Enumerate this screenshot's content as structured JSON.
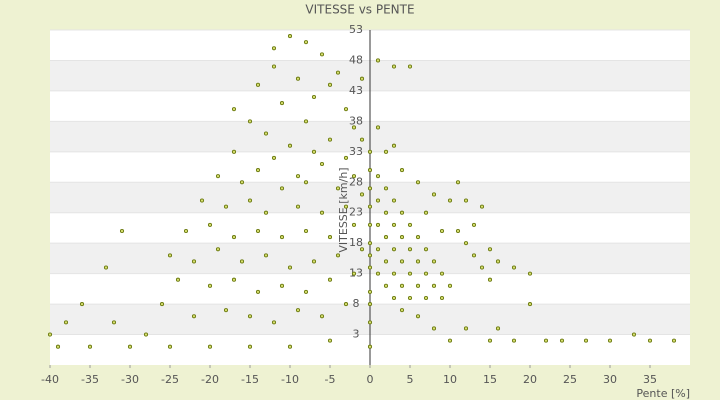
{
  "chart_data": {
    "type": "scatter",
    "title": "VITESSE vs PENTE",
    "x_label": "Pente [%]",
    "y_label": "VITESSE [km/h]",
    "color": "#6b7a10",
    "grid": true,
    "xlim": [
      -40,
      40
    ],
    "xticks": [
      -40,
      -35,
      -30,
      -25,
      -20,
      -15,
      -10,
      -5,
      0,
      5,
      10,
      15,
      20,
      25,
      30,
      35
    ],
    "ylim": [
      -2,
      53
    ],
    "yticks": [
      3,
      8,
      13,
      18,
      23,
      28,
      33,
      38,
      43,
      48,
      53
    ],
    "x": [
      -10,
      -8,
      -12,
      -6,
      -14,
      -9,
      -4,
      -11,
      -7,
      -3,
      -15,
      -13,
      -8,
      -5,
      -2,
      -17,
      -12,
      -10,
      -6,
      -3,
      -19,
      -16,
      -14,
      -11,
      -8,
      -4,
      -2,
      -21,
      -18,
      -15,
      -13,
      -9,
      -6,
      -3,
      -1,
      -23,
      -20,
      -17,
      -14,
      -11,
      -8,
      -5,
      -2,
      -25,
      -22,
      -19,
      -16,
      -13,
      -10,
      -7,
      -4,
      -1,
      -24,
      -20,
      -17,
      -14,
      -11,
      -8,
      -5,
      -2,
      -26,
      -22,
      -18,
      -15,
      -12,
      -9,
      -6,
      -3,
      -31,
      -33,
      -36,
      -38,
      -40,
      -39,
      -35,
      -30,
      -25,
      -20,
      -15,
      -10,
      -5,
      -28,
      -32,
      -17,
      -12,
      -5,
      -9,
      -7,
      -1,
      -1,
      0,
      0,
      0,
      0,
      0,
      0,
      0,
      0,
      0,
      0,
      0,
      0,
      1,
      2,
      3,
      4,
      5,
      6,
      7,
      8,
      9,
      10,
      1,
      2,
      3,
      4,
      5,
      6,
      7,
      8,
      9,
      1,
      2,
      3,
      4,
      5,
      6,
      7,
      1,
      2,
      3,
      4,
      5,
      1,
      2,
      3,
      4,
      11,
      12,
      13,
      14,
      15,
      13,
      15,
      16,
      14,
      12,
      10,
      8,
      6,
      4,
      2,
      1,
      3,
      1,
      3,
      5,
      18,
      20,
      20,
      24,
      27,
      30,
      35,
      38,
      33,
      22,
      18,
      15,
      10,
      8,
      6,
      12,
      16,
      11,
      9,
      7
    ],
    "values": [
      52,
      51,
      47,
      49,
      44,
      45,
      46,
      41,
      42,
      40,
      38,
      36,
      38,
      35,
      37,
      33,
      32,
      34,
      31,
      32,
      29,
      28,
      30,
      27,
      28,
      27,
      29,
      25,
      24,
      25,
      23,
      24,
      23,
      24,
      26,
      20,
      21,
      19,
      20,
      19,
      20,
      19,
      21,
      16,
      15,
      17,
      15,
      16,
      14,
      15,
      16,
      17,
      12,
      11,
      12,
      10,
      11,
      10,
      12,
      13,
      8,
      6,
      7,
      6,
      5,
      7,
      6,
      8,
      20,
      14,
      8,
      5,
      3,
      1,
      1,
      1,
      1,
      1,
      1,
      1,
      2,
      3,
      5,
      40,
      50,
      44,
      29,
      33,
      45,
      35,
      1,
      5,
      10,
      14,
      18,
      21,
      24,
      27,
      30,
      33,
      8,
      16,
      29,
      27,
      25,
      23,
      21,
      19,
      17,
      15,
      13,
      11,
      25,
      23,
      21,
      19,
      17,
      15,
      13,
      11,
      9,
      21,
      19,
      17,
      15,
      13,
      11,
      9,
      17,
      15,
      13,
      11,
      9,
      13,
      11,
      9,
      7,
      20,
      18,
      16,
      14,
      12,
      21,
      17,
      15,
      24,
      25,
      25,
      26,
      28,
      30,
      33,
      37,
      34,
      48,
      47,
      47,
      14,
      13,
      8,
      2,
      2,
      2,
      2,
      2,
      3,
      2,
      2,
      2,
      2,
      4,
      6,
      4,
      4,
      28,
      20,
      23
    ]
  }
}
